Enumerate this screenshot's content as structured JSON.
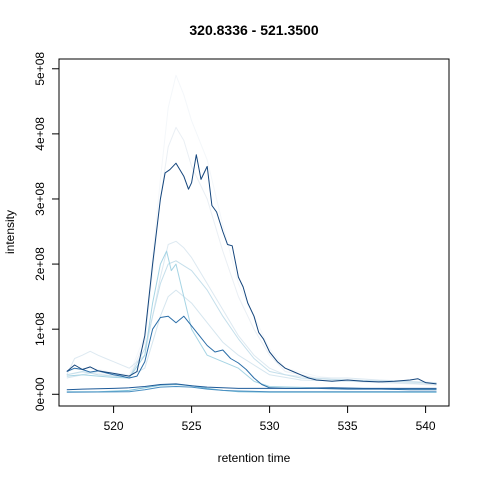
{
  "chart_data": {
    "type": "line",
    "title": "320.8336 - 521.3500",
    "xlabel": "retention time",
    "ylabel": "intensity",
    "xlim": [
      516.5,
      541.5
    ],
    "ylim": [
      -18000000,
      515000000
    ],
    "x_ticks": [
      520,
      525,
      530,
      535,
      540
    ],
    "x_tick_labels": [
      "520",
      "525",
      "530",
      "535",
      "540"
    ],
    "y_ticks": [
      0,
      100000000,
      200000000,
      300000000,
      400000000,
      500000000
    ],
    "y_tick_labels": [
      "0e+00",
      "1e+08",
      "2e+08",
      "3e+08",
      "4e+08",
      "5e+08"
    ],
    "grid": false,
    "legend": "none",
    "series": [
      {
        "color": "#f4f7fa",
        "points": [
          [
            517,
            36000000
          ],
          [
            518,
            40000000
          ],
          [
            519,
            38000000
          ],
          [
            520,
            33000000
          ],
          [
            521,
            30000000
          ],
          [
            522,
            90000000
          ],
          [
            523,
            330000000
          ],
          [
            523.5,
            440000000
          ],
          [
            524,
            490000000
          ],
          [
            524.5,
            460000000
          ],
          [
            525,
            420000000
          ],
          [
            526,
            360000000
          ],
          [
            527,
            260000000
          ],
          [
            528,
            170000000
          ],
          [
            529,
            120000000
          ],
          [
            530,
            70000000
          ],
          [
            531,
            40000000
          ],
          [
            533,
            28000000
          ],
          [
            535,
            22000000
          ],
          [
            537,
            20000000
          ],
          [
            539,
            18000000
          ],
          [
            540.7,
            16000000
          ]
        ]
      },
      {
        "color": "#eaeff4",
        "points": [
          [
            517,
            30000000
          ],
          [
            518,
            34000000
          ],
          [
            519,
            32000000
          ],
          [
            520,
            28000000
          ],
          [
            521,
            26000000
          ],
          [
            522,
            80000000
          ],
          [
            523,
            300000000
          ],
          [
            523.5,
            380000000
          ],
          [
            524,
            410000000
          ],
          [
            524.5,
            390000000
          ],
          [
            525,
            350000000
          ],
          [
            526,
            300000000
          ],
          [
            527,
            220000000
          ],
          [
            528,
            150000000
          ],
          [
            529,
            100000000
          ],
          [
            530,
            60000000
          ],
          [
            531,
            35000000
          ],
          [
            533,
            25000000
          ],
          [
            535,
            20000000
          ],
          [
            537,
            18000000
          ],
          [
            539,
            16000000
          ],
          [
            540.7,
            14000000
          ]
        ]
      },
      {
        "color": "#dde9f1",
        "points": [
          [
            517,
            30000000
          ],
          [
            517.5,
            55000000
          ],
          [
            518,
            60000000
          ],
          [
            518.5,
            66000000
          ],
          [
            519,
            60000000
          ],
          [
            519.5,
            55000000
          ],
          [
            520,
            50000000
          ],
          [
            521,
            40000000
          ],
          [
            522,
            60000000
          ],
          [
            523,
            180000000
          ],
          [
            523.5,
            230000000
          ],
          [
            524,
            235000000
          ],
          [
            524.5,
            225000000
          ],
          [
            525,
            210000000
          ],
          [
            526,
            170000000
          ],
          [
            527,
            130000000
          ],
          [
            528,
            90000000
          ],
          [
            529,
            60000000
          ],
          [
            530,
            40000000
          ],
          [
            531,
            30000000
          ],
          [
            533,
            25000000
          ],
          [
            535,
            25000000
          ],
          [
            537,
            22000000
          ],
          [
            539,
            20000000
          ],
          [
            540.7,
            18000000
          ]
        ]
      },
      {
        "color": "#d6e6ef",
        "points": [
          [
            517,
            25000000
          ],
          [
            518,
            30000000
          ],
          [
            519,
            35000000
          ],
          [
            520,
            30000000
          ],
          [
            521,
            28000000
          ],
          [
            522,
            40000000
          ],
          [
            523,
            120000000
          ],
          [
            523.5,
            150000000
          ],
          [
            524,
            160000000
          ],
          [
            525,
            140000000
          ],
          [
            526,
            110000000
          ],
          [
            527,
            80000000
          ],
          [
            528,
            60000000
          ],
          [
            529,
            45000000
          ],
          [
            530,
            30000000
          ],
          [
            532,
            22000000
          ],
          [
            535,
            20000000
          ],
          [
            538,
            18000000
          ],
          [
            540.7,
            15000000
          ]
        ]
      },
      {
        "color": "#c5dfeb",
        "points": [
          [
            517,
            30000000
          ],
          [
            518,
            35000000
          ],
          [
            519,
            30000000
          ],
          [
            520,
            28000000
          ],
          [
            521,
            25000000
          ],
          [
            522,
            70000000
          ],
          [
            523,
            170000000
          ],
          [
            523.5,
            200000000
          ],
          [
            524,
            205000000
          ],
          [
            525,
            190000000
          ],
          [
            526,
            160000000
          ],
          [
            527,
            120000000
          ],
          [
            528,
            85000000
          ],
          [
            529,
            55000000
          ],
          [
            530,
            35000000
          ],
          [
            532,
            25000000
          ],
          [
            535,
            22000000
          ],
          [
            538,
            20000000
          ],
          [
            540.7,
            17000000
          ]
        ]
      },
      {
        "color": "#a6d4e4",
        "points": [
          [
            517,
            28000000
          ],
          [
            518,
            30000000
          ],
          [
            519,
            28000000
          ],
          [
            520,
            26000000
          ],
          [
            521,
            25000000
          ],
          [
            522,
            60000000
          ],
          [
            522.5,
            140000000
          ],
          [
            523,
            200000000
          ],
          [
            523.4,
            220000000
          ],
          [
            523.7,
            190000000
          ],
          [
            524,
            200000000
          ],
          [
            524.5,
            150000000
          ],
          [
            525,
            100000000
          ],
          [
            525.5,
            80000000
          ],
          [
            526,
            60000000
          ],
          [
            527,
            50000000
          ],
          [
            528,
            40000000
          ],
          [
            529,
            20000000
          ],
          [
            530,
            12000000
          ],
          [
            533,
            10000000
          ],
          [
            536,
            9000000
          ],
          [
            540.7,
            8000000
          ]
        ]
      },
      {
        "color": "#7cc0d8",
        "points": [
          [
            517,
            4000000
          ],
          [
            519,
            4000000
          ],
          [
            521,
            6000000
          ],
          [
            522,
            10000000
          ],
          [
            523,
            14000000
          ],
          [
            524,
            15000000
          ],
          [
            525,
            13000000
          ],
          [
            526,
            9000000
          ],
          [
            527,
            6000000
          ],
          [
            528,
            4000000
          ],
          [
            530,
            3000000
          ],
          [
            535,
            3000000
          ],
          [
            540.7,
            3000000
          ]
        ]
      },
      {
        "color": "#4a90c2",
        "points": [
          [
            517,
            3000000
          ],
          [
            519,
            3500000
          ],
          [
            521,
            4000000
          ],
          [
            522,
            7000000
          ],
          [
            523,
            11000000
          ],
          [
            524,
            12000000
          ],
          [
            525,
            11000000
          ],
          [
            526,
            8000000
          ],
          [
            527,
            6000000
          ],
          [
            528,
            5000000
          ],
          [
            530,
            4000000
          ],
          [
            535,
            4000000
          ],
          [
            540.7,
            4000000
          ]
        ]
      },
      {
        "color": "#2b6ea8",
        "points": [
          [
            517,
            35000000
          ],
          [
            517.5,
            40000000
          ],
          [
            518,
            38000000
          ],
          [
            518.5,
            34000000
          ],
          [
            519,
            36000000
          ],
          [
            519.5,
            33000000
          ],
          [
            520,
            30000000
          ],
          [
            520.5,
            28000000
          ],
          [
            521,
            25000000
          ],
          [
            521.5,
            28000000
          ],
          [
            522,
            50000000
          ],
          [
            522.5,
            100000000
          ],
          [
            523,
            118000000
          ],
          [
            523.5,
            120000000
          ],
          [
            524,
            110000000
          ],
          [
            524.5,
            120000000
          ],
          [
            525,
            105000000
          ],
          [
            525.5,
            90000000
          ],
          [
            526,
            75000000
          ],
          [
            526.5,
            65000000
          ],
          [
            527,
            68000000
          ],
          [
            527.5,
            55000000
          ],
          [
            528,
            48000000
          ],
          [
            528.5,
            38000000
          ],
          [
            529,
            25000000
          ],
          [
            529.5,
            15000000
          ],
          [
            530,
            10000000
          ],
          [
            531,
            9000000
          ],
          [
            533,
            9000000
          ],
          [
            535,
            8000000
          ],
          [
            537,
            8000000
          ],
          [
            539,
            7000000
          ],
          [
            540.7,
            7000000
          ]
        ]
      },
      {
        "color": "#1f5b99",
        "points": [
          [
            517,
            7000000
          ],
          [
            518,
            8000000
          ],
          [
            519,
            8500000
          ],
          [
            520,
            9000000
          ],
          [
            521,
            10000000
          ],
          [
            522,
            12000000
          ],
          [
            523,
            15000000
          ],
          [
            524,
            16000000
          ],
          [
            525,
            13000000
          ],
          [
            526,
            11000000
          ],
          [
            527,
            10000000
          ],
          [
            528,
            9000000
          ],
          [
            530,
            9000000
          ],
          [
            532,
            9000000
          ],
          [
            534,
            10000000
          ],
          [
            536,
            9000000
          ],
          [
            538,
            9000000
          ],
          [
            540.7,
            9000000
          ]
        ]
      },
      {
        "color": "#14457c",
        "points": [
          [
            517,
            35000000
          ],
          [
            517.5,
            45000000
          ],
          [
            518,
            38000000
          ],
          [
            518.5,
            42000000
          ],
          [
            519,
            36000000
          ],
          [
            519.5,
            34000000
          ],
          [
            520,
            32000000
          ],
          [
            520.5,
            30000000
          ],
          [
            521,
            28000000
          ],
          [
            521.5,
            35000000
          ],
          [
            522,
            90000000
          ],
          [
            522.5,
            200000000
          ],
          [
            523,
            300000000
          ],
          [
            523.3,
            340000000
          ],
          [
            523.6,
            345000000
          ],
          [
            524,
            355000000
          ],
          [
            524.5,
            335000000
          ],
          [
            524.8,
            315000000
          ],
          [
            525,
            325000000
          ],
          [
            525.3,
            368000000
          ],
          [
            525.6,
            330000000
          ],
          [
            526,
            350000000
          ],
          [
            526.3,
            290000000
          ],
          [
            526.6,
            280000000
          ],
          [
            527,
            250000000
          ],
          [
            527.3,
            230000000
          ],
          [
            527.6,
            228000000
          ],
          [
            528,
            180000000
          ],
          [
            528.3,
            165000000
          ],
          [
            528.6,
            140000000
          ],
          [
            529,
            120000000
          ],
          [
            529.3,
            95000000
          ],
          [
            529.6,
            85000000
          ],
          [
            530,
            65000000
          ],
          [
            530.5,
            50000000
          ],
          [
            531,
            40000000
          ],
          [
            531.5,
            35000000
          ],
          [
            532,
            30000000
          ],
          [
            532.5,
            25000000
          ],
          [
            533,
            22000000
          ],
          [
            534,
            20000000
          ],
          [
            535,
            22000000
          ],
          [
            536,
            20000000
          ],
          [
            537,
            19000000
          ],
          [
            538,
            20000000
          ],
          [
            539,
            22000000
          ],
          [
            539.5,
            24000000
          ],
          [
            540,
            18000000
          ],
          [
            540.7,
            16000000
          ]
        ]
      }
    ]
  }
}
